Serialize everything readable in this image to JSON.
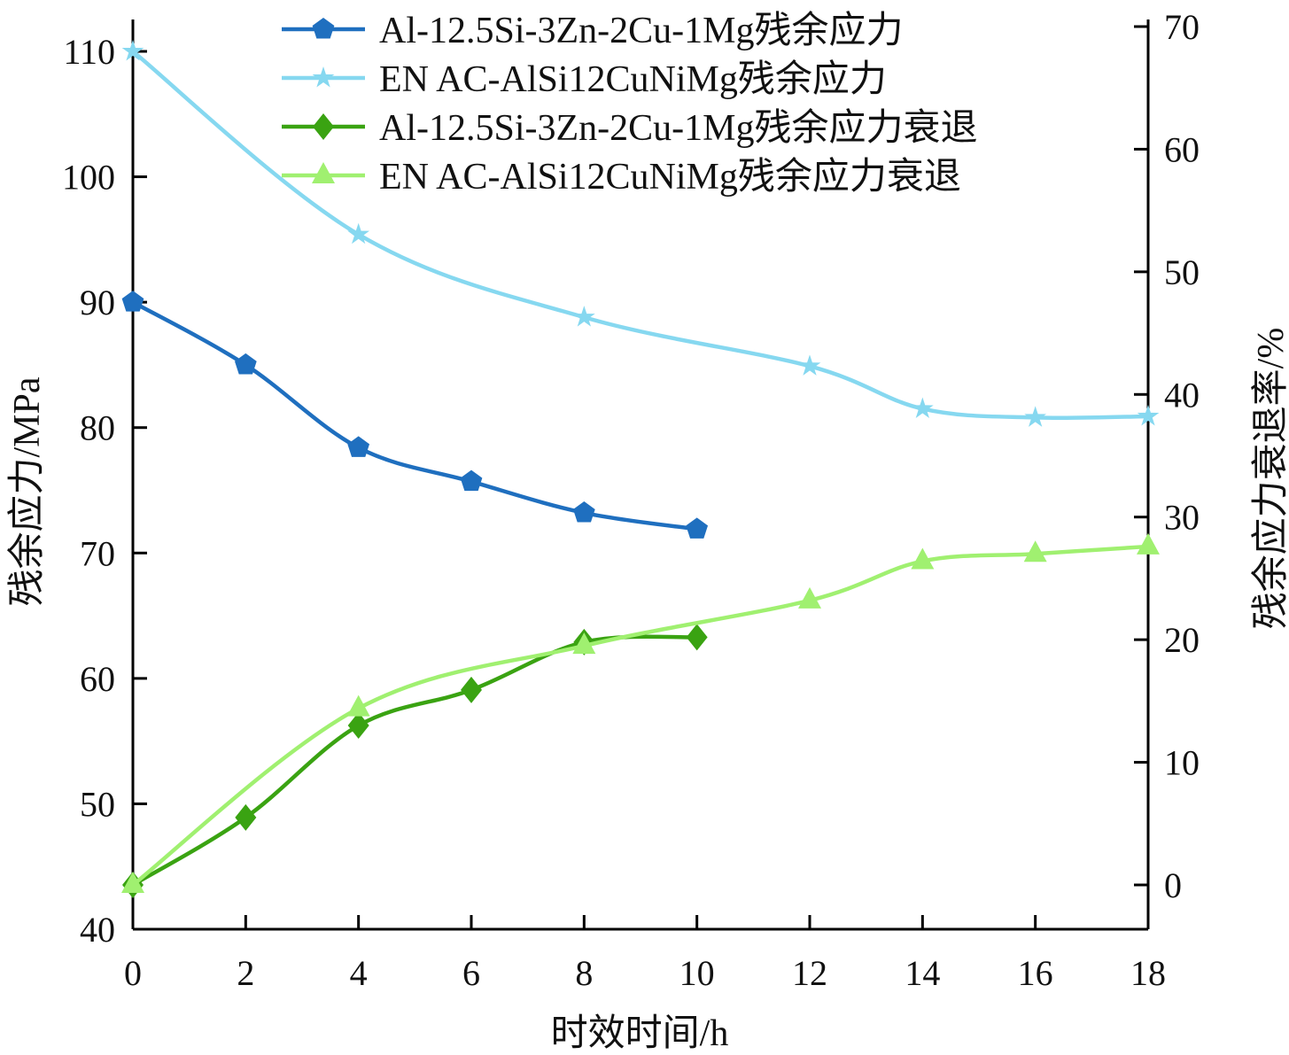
{
  "chart_data": {
    "type": "line",
    "xlabel": "时效时间/h",
    "ylabel": "残余应力/MPa",
    "y2label": "残余应力衰退率/%",
    "xlim": [
      0,
      18
    ],
    "ylim": [
      40,
      110
    ],
    "y2lim": [
      0,
      70
    ],
    "xticks": [
      "0",
      "2",
      "4",
      "6",
      "8",
      "10",
      "12",
      "14",
      "16",
      "18"
    ],
    "yticks": [
      "40",
      "50",
      "60",
      "70",
      "80",
      "90",
      "100",
      "110"
    ],
    "y2ticks": [
      "0",
      "10",
      "20",
      "30",
      "40",
      "50",
      "60",
      "70"
    ],
    "grid": false,
    "legend_position": "top",
    "series": [
      {
        "name": "Al-12.5Si-3Zn-2Cu-1Mg残余应力",
        "axis": "left",
        "marker": "pentagon",
        "color": "#1f6fbf",
        "x": [
          0,
          2,
          4,
          6,
          8,
          10
        ],
        "y": [
          90,
          85,
          78.4,
          75.7,
          73.2,
          71.9
        ]
      },
      {
        "name": "EN AC-AlSi12CuNiMg残余应力",
        "axis": "left",
        "marker": "star",
        "color": "#86d8f0",
        "x": [
          0,
          4,
          8,
          12,
          14,
          16,
          18
        ],
        "y": [
          110,
          95.4,
          88.8,
          84.9,
          81.5,
          80.8,
          80.9
        ]
      },
      {
        "name": "Al-12.5Si-3Zn-2Cu-1Mg残余应力衰退",
        "axis": "right",
        "marker": "diamond",
        "color": "#3aa312",
        "x": [
          0,
          2,
          4,
          6,
          8,
          10
        ],
        "y": [
          0,
          5.5,
          13.0,
          15.9,
          19.8,
          20.2
        ]
      },
      {
        "name": "EN AC-AlSi12CuNiMg残余应力衰退",
        "axis": "right",
        "marker": "triangle",
        "color": "#a0f070",
        "x": [
          0,
          4,
          8,
          12,
          14,
          16,
          18
        ],
        "y": [
          0,
          14.4,
          19.5,
          23.2,
          26.4,
          27.0,
          27.6
        ]
      }
    ]
  }
}
